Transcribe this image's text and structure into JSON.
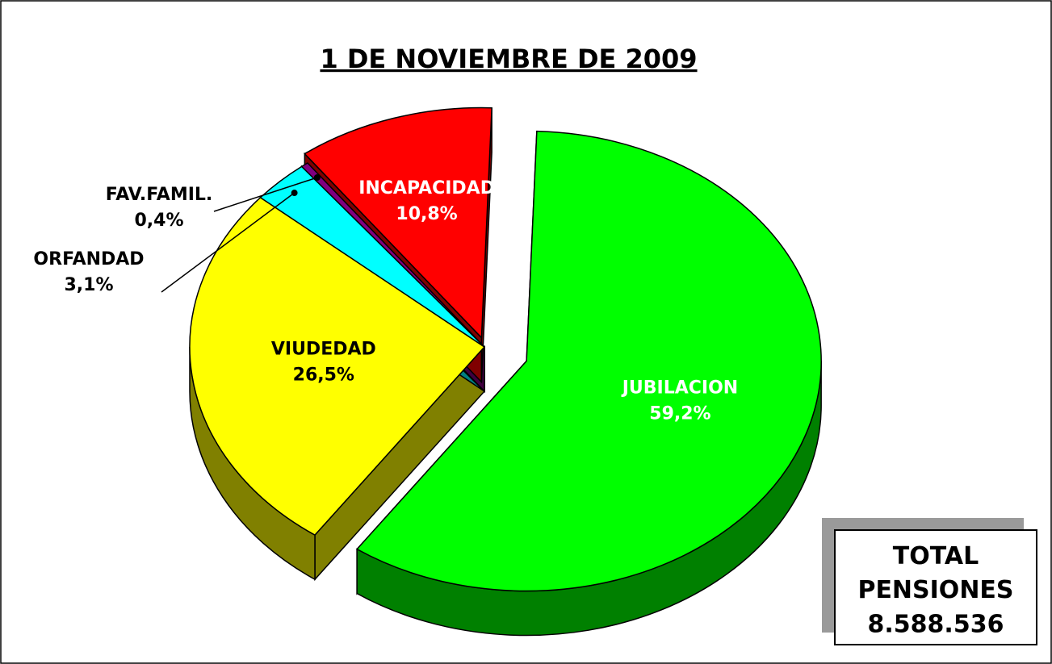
{
  "chart_data": {
    "type": "pie",
    "title": "1 DE NOVIEMBRE DE 2009",
    "categories": [
      "JUBILACION",
      "VIUDEDAD",
      "ORFANDAD",
      "FAV.FAMIL.",
      "INCAPACIDAD"
    ],
    "values": [
      59.2,
      26.5,
      3.1,
      0.4,
      10.8
    ],
    "value_labels": [
      "59,2%",
      "26,5%",
      "3,1%",
      "0,4%",
      "10,8%"
    ],
    "colors": [
      "#00ff00",
      "#ffff00",
      "#00ffff",
      "#800080",
      "#ff0000"
    ],
    "total_box": {
      "title": "TOTAL PENSIONES",
      "text": "8.588.536"
    }
  }
}
